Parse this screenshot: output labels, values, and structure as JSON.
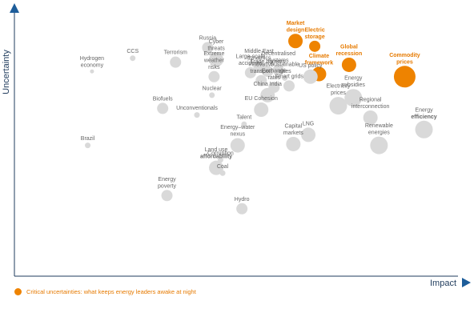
{
  "chart_data": {
    "type": "scatter",
    "xlabel": "Impact",
    "ylabel": "Uncertainty",
    "grid": false,
    "legend": {
      "position": "bottom-left",
      "label": "Critical uncertainties: what keeps energy leaders awake at night"
    },
    "colors": {
      "critical": "#ee8300",
      "other": "#d9d9d9",
      "label": "#666666",
      "critical_label": "#e67a00",
      "axis": "#1f3b5c",
      "arrow": "#1d5d9a"
    },
    "points": [
      {
        "label": "Market\ndesign",
        "x": 6.15,
        "y": 8.75,
        "size": 3,
        "critical": true,
        "bold": ""
      },
      {
        "label": "Electric\nstorage",
        "x": 6.6,
        "y": 8.55,
        "size": 2,
        "critical": true,
        "bold": ""
      },
      {
        "label": "Global\nrecession",
        "x": 7.4,
        "y": 7.85,
        "size": 3,
        "critical": true,
        "bold": ""
      },
      {
        "label": "Commodity\nprices",
        "x": 8.7,
        "y": 7.4,
        "size": 5,
        "critical": true,
        "bold": ""
      },
      {
        "label": "Climate\nframework",
        "x": 6.7,
        "y": 7.5,
        "size": 3,
        "critical": true,
        "bold": ""
      },
      {
        "label": "Russia",
        "x": 4.1,
        "y": 8.5,
        "size": 2,
        "critical": false,
        "bold": ""
      },
      {
        "label": "Cyber\nthreats",
        "x": 4.3,
        "y": 8.05,
        "size": 3,
        "critical": false,
        "bold": ""
      },
      {
        "label": "CCS",
        "x": 2.35,
        "y": 8.1,
        "size": 1,
        "critical": false,
        "bold": ""
      },
      {
        "label": "Hydrogen\neconomy",
        "x": 1.4,
        "y": 7.6,
        "size": 0,
        "critical": false,
        "bold": ""
      },
      {
        "label": "Terrorism",
        "x": 3.35,
        "y": 7.95,
        "size": 2,
        "critical": false,
        "bold": ""
      },
      {
        "label": "Middle East\ndynamics",
        "x": 5.3,
        "y": 7.75,
        "size": 2,
        "critical": false,
        "bold": ""
      },
      {
        "label": "Large-scale\naccidents",
        "x": 5.1,
        "y": 7.55,
        "size": 2,
        "critical": false,
        "bold": ""
      },
      {
        "label": "Trade barriers",
        "x": 5.5,
        "y": 7.6,
        "size": 2,
        "critical": false,
        "bold": ""
      },
      {
        "label": "Decentralised\nsystems",
        "x": 5.75,
        "y": 7.65,
        "size": 2,
        "critical": false,
        "bold": ""
      },
      {
        "label": "Sustainable\ncities",
        "x": 5.9,
        "y": 7.35,
        "size": 1,
        "critical": false,
        "bold": ""
      },
      {
        "label": "Extreme\nweather\nrisks",
        "x": 4.25,
        "y": 7.4,
        "size": 2,
        "critical": false,
        "bold": ""
      },
      {
        "label": "Innovative\ntransport",
        "x": 5.35,
        "y": 7.25,
        "size": 2,
        "critical": false,
        "bold": ""
      },
      {
        "label": "Smart grids",
        "x": 6.0,
        "y": 7.05,
        "size": 2,
        "critical": false,
        "bold": ""
      },
      {
        "label": "US policy",
        "x": 6.5,
        "y": 7.4,
        "size": 3,
        "critical": false,
        "bold": ""
      },
      {
        "label": "China India",
        "x": 5.5,
        "y": 6.7,
        "size": 3,
        "critical": false,
        "bold": ""
      },
      {
        "label": "Exchange\nrates",
        "x": 5.65,
        "y": 7.0,
        "size": 2,
        "critical": false,
        "bold": ""
      },
      {
        "label": "Energy\nsubsidies",
        "x": 7.5,
        "y": 6.6,
        "size": 4,
        "critical": false,
        "bold": ""
      },
      {
        "label": "Nuclear",
        "x": 4.2,
        "y": 6.7,
        "size": 1,
        "critical": false,
        "bold": ""
      },
      {
        "label": "Biofuels",
        "x": 3.05,
        "y": 6.2,
        "size": 2,
        "critical": false,
        "bold": ""
      },
      {
        "label": "EU Cohesion",
        "x": 5.35,
        "y": 6.15,
        "size": 3,
        "critical": false,
        "bold": ""
      },
      {
        "label": "Unconventionals",
        "x": 3.85,
        "y": 5.95,
        "size": 1,
        "critical": false,
        "bold": ""
      },
      {
        "label": "Talent",
        "x": 4.95,
        "y": 5.6,
        "size": 1,
        "critical": false,
        "bold": ""
      },
      {
        "label": "LNG",
        "x": 6.45,
        "y": 5.2,
        "size": 3,
        "critical": false,
        "bold": ""
      },
      {
        "label": "Electricity\nprices",
        "x": 7.15,
        "y": 6.3,
        "size": 4,
        "critical": false,
        "bold": ""
      },
      {
        "label": "Regional\ninterconnection",
        "x": 7.9,
        "y": 5.85,
        "size": 3,
        "critical": false,
        "bold": ""
      },
      {
        "label": "Energy\n",
        "x": 9.15,
        "y": 5.4,
        "size": 4,
        "critical": false,
        "bold": "efficiency"
      },
      {
        "label": "Energy–water\nnexus",
        "x": 4.8,
        "y": 4.8,
        "size": 3,
        "critical": false,
        "bold": ""
      },
      {
        "label": "Brazil",
        "x": 1.3,
        "y": 4.8,
        "size": 1,
        "critical": false,
        "bold": ""
      },
      {
        "label": "Capital\nmarkets",
        "x": 6.1,
        "y": 4.85,
        "size": 3,
        "critical": false,
        "bold": ""
      },
      {
        "label": "Renewable\nenergies",
        "x": 8.1,
        "y": 4.8,
        "size": 4,
        "critical": false,
        "bold": ""
      },
      {
        "label": "Corruption",
        "x": 4.4,
        "y": 4.25,
        "size": 1,
        "critical": false,
        "bold": ""
      },
      {
        "label": "Land use",
        "x": 4.3,
        "y": 3.95,
        "size": 3,
        "critical": false,
        "bold": "affordability"
      },
      {
        "label": "Coal",
        "x": 4.45,
        "y": 3.75,
        "size": 1,
        "critical": false,
        "bold": ""
      },
      {
        "label": "Energy\npoverty",
        "x": 3.15,
        "y": 2.9,
        "size": 2,
        "critical": false,
        "bold": ""
      },
      {
        "label": "Hydro",
        "x": 4.9,
        "y": 2.4,
        "size": 2,
        "critical": false,
        "bold": ""
      }
    ]
  }
}
